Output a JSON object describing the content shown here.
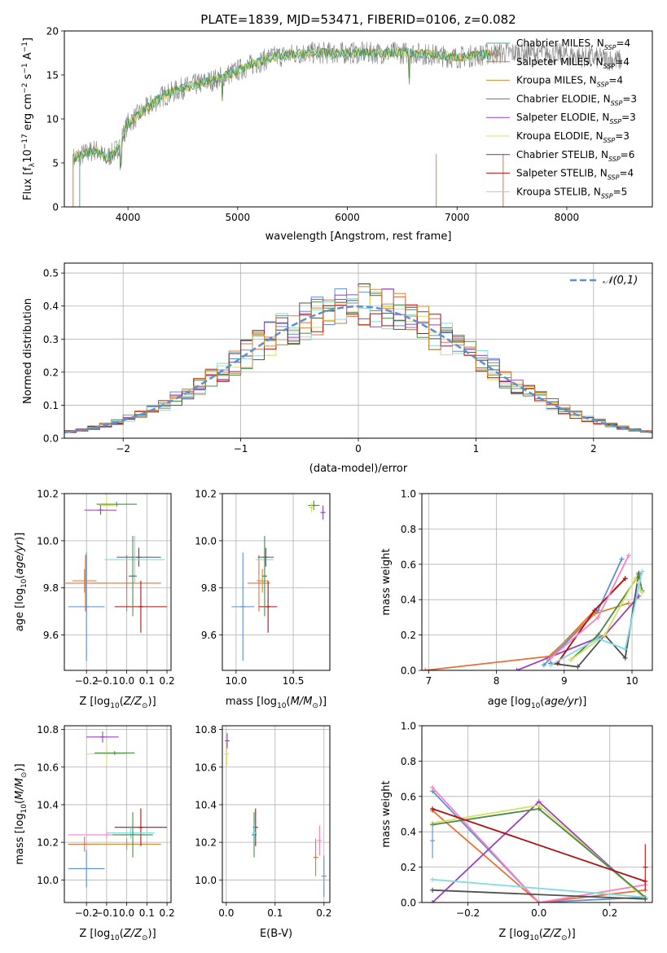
{
  "title": "PLATE=1839, MJD=53471, FIBERID=0106, z=0.082",
  "colors": {
    "chabrier_miles": "#5aa0a0",
    "salpeter_miles": "#e8703a",
    "kroupa_miles": "#d08a30",
    "chabrier_elodie": "#4a8a4a",
    "salpeter_elodie": "#9a40c0",
    "kroupa_elodie": "#d8e060",
    "chabrier_stelib": "#505050",
    "salpeter_stelib": "#b01010",
    "kroupa_stelib": "#80dce0",
    "gaussian": "#5b8fd6",
    "spectrum": "#808080"
  },
  "chart_data": [
    {
      "id": "spectrum",
      "type": "line",
      "xlabel": "wavelength [Angstrom, rest frame]",
      "ylabel": "Flux [f_λ10^-17 erg cm^-2 s^-1 A^-1]",
      "xlim": [
        3420,
        8780
      ],
      "ylim": [
        0,
        20
      ],
      "xticks": [
        4000,
        5000,
        6000,
        7000,
        8000
      ],
      "yticks": [
        0,
        5,
        10,
        15,
        20
      ],
      "legend_position": "right",
      "legend": [
        {
          "label": "Chabrier MILES, N",
          "sub": "SSP",
          "tail": "=4",
          "color": "#5aa0a0"
        },
        {
          "label": "Salpeter MILES, N",
          "sub": "SSP",
          "tail": "=4",
          "color": "#e8703a"
        },
        {
          "label": "Kroupa MILES, N",
          "sub": "SSP",
          "tail": "=4",
          "color": "#d08a30"
        },
        {
          "label": "Chabrier ELODIE, N",
          "sub": "SSP",
          "tail": "=3",
          "color": "#4a8a4a"
        },
        {
          "label": "Salpeter ELODIE, N",
          "sub": "SSP",
          "tail": "=3",
          "color": "#9a40c0"
        },
        {
          "label": "Kroupa ELODIE, N",
          "sub": "SSP",
          "tail": "=3",
          "color": "#d8e060"
        },
        {
          "label": "Chabrier STELIB, N",
          "sub": "SSP",
          "tail": "=6",
          "color": "#505050"
        },
        {
          "label": "Salpeter STELIB, N",
          "sub": "SSP",
          "tail": "=4",
          "color": "#b01010"
        },
        {
          "label": "Kroupa STELIB, N",
          "sub": "SSP",
          "tail": "=5",
          "color": "#80dce0"
        }
      ],
      "continuum": {
        "x": [
          3500,
          3600,
          3700,
          3800,
          3900,
          4000,
          4100,
          4300,
          4500,
          4800,
          5000,
          5300,
          5600,
          6000,
          6300,
          6600,
          7000,
          7400,
          7800,
          8200,
          8600
        ],
        "y": [
          5.5,
          6.0,
          6.5,
          5.5,
          6.5,
          9.5,
          10.5,
          12.5,
          13.5,
          14.5,
          15.5,
          17.0,
          17.5,
          17.5,
          17.5,
          17.5,
          17.0,
          17.5,
          17.5,
          17.0,
          16.5
        ]
      }
    },
    {
      "id": "residuals",
      "type": "histogram",
      "xlabel": "(data-model)/error",
      "ylabel": "Normed distribution",
      "xlim": [
        -2.5,
        2.5
      ],
      "ylim": [
        0,
        0.53
      ],
      "xticks": [
        -2,
        -1,
        0,
        1,
        2
      ],
      "yticks": [
        0.0,
        0.1,
        0.2,
        0.3,
        0.4,
        0.5
      ],
      "legend_position": "upper right",
      "gaussian_label": "𝒩(0,1)",
      "bin_width": 0.1
    },
    {
      "id": "age_vs_Z",
      "type": "scatter",
      "xlabel": "Z [log10(Z/Z☉)]",
      "ylabel": "age [log10(age/yr)]",
      "xlim": [
        -0.31,
        0.22
      ],
      "ylim": [
        9.45,
        10.2
      ],
      "xticks": [
        -0.2,
        -0.1,
        0.0,
        0.1,
        0.2
      ],
      "yticks": [
        9.6,
        9.8,
        10.0,
        10.2
      ],
      "points": [
        {
          "x": -0.2,
          "y": 9.72,
          "xerr": 0.09,
          "yerr": 0.23,
          "color": "#5b8fd6"
        },
        {
          "x": -0.205,
          "y": 9.82,
          "xerr": 0.1,
          "yerr": 0.12,
          "color": "#e8703a"
        },
        {
          "x": 0.0,
          "y": 9.82,
          "xerr": 0.17,
          "yerr": 0.12,
          "color": "#e8703a"
        },
        {
          "x": -0.21,
          "y": 9.83,
          "xerr": 0.06,
          "yerr": 0.05,
          "color": "#d08a30"
        },
        {
          "x": 0.07,
          "y": 9.72,
          "xerr": 0.13,
          "yerr": 0.11,
          "color": "#b01010"
        },
        {
          "x": 0.06,
          "y": 9.93,
          "xerr": 0.11,
          "yerr": 0.04,
          "color": "#505050"
        },
        {
          "x": 0.04,
          "y": 9.92,
          "xerr": 0.15,
          "yerr": 0.1,
          "color": "#80dce0"
        },
        {
          "x": 0.03,
          "y": 9.85,
          "xerr": 0.02,
          "yerr": 0.17,
          "color": "#4a8a4a"
        },
        {
          "x": -0.1,
          "y": 10.15,
          "xerr": 0.04,
          "yerr": 0.04,
          "color": "#d8e060"
        },
        {
          "x": -0.13,
          "y": 10.13,
          "xerr": 0.08,
          "yerr": 0.02,
          "color": "#9a40c0"
        },
        {
          "x": -0.05,
          "y": 10.155,
          "xerr": 0.1,
          "yerr": 0.01,
          "color": "#4a8a4a"
        }
      ]
    },
    {
      "id": "age_vs_mass",
      "type": "scatter",
      "xlabel": "mass [log10(M/M☉)]",
      "ylabel": "",
      "xlim": [
        9.88,
        10.82
      ],
      "ylim": [
        9.45,
        10.2
      ],
      "xticks": [
        10.0,
        10.5
      ],
      "yticks": [
        9.6,
        9.8,
        10.0,
        10.2
      ],
      "points": [
        {
          "x": 10.06,
          "y": 9.72,
          "xerr": 0.1,
          "yerr": 0.23,
          "color": "#5b8fd6"
        },
        {
          "x": 10.2,
          "y": 9.82,
          "xerr": 0.1,
          "yerr": 0.12,
          "color": "#e8703a"
        },
        {
          "x": 10.23,
          "y": 9.83,
          "xerr": 0.05,
          "yerr": 0.05,
          "color": "#d08a30"
        },
        {
          "x": 10.28,
          "y": 9.72,
          "xerr": 0.08,
          "yerr": 0.11,
          "color": "#b01010"
        },
        {
          "x": 10.25,
          "y": 9.92,
          "xerr": 0.08,
          "yerr": 0.1,
          "color": "#80dce0"
        },
        {
          "x": 10.26,
          "y": 9.93,
          "xerr": 0.07,
          "yerr": 0.04,
          "color": "#505050"
        },
        {
          "x": 10.25,
          "y": 9.85,
          "xerr": 0.02,
          "yerr": 0.17,
          "color": "#4a8a4a"
        },
        {
          "x": 10.68,
          "y": 10.15,
          "xerr": 0.05,
          "yerr": 0.02,
          "color": "#4a8a4a"
        },
        {
          "x": 10.66,
          "y": 10.14,
          "xerr": 0.02,
          "yerr": 0.02,
          "color": "#d8e060"
        },
        {
          "x": 10.76,
          "y": 10.12,
          "xerr": 0.02,
          "yerr": 0.03,
          "color": "#9a40c0"
        }
      ]
    },
    {
      "id": "mass_weight_vs_age",
      "type": "line",
      "xlabel": "age [log10(age/yr)]",
      "ylabel": "mass weight",
      "xlim": [
        6.9,
        10.3
      ],
      "ylim": [
        0,
        1.0
      ],
      "xticks": [
        7,
        8,
        9,
        10
      ],
      "yticks": [
        0.0,
        0.2,
        0.4,
        0.6,
        0.8,
        1.0
      ],
      "series": [
        {
          "color": "#5b8fd6",
          "x": [
            8.7,
            9.5,
            9.85
          ],
          "y": [
            0.03,
            0.34,
            0.63
          ]
        },
        {
          "color": "#e8703a",
          "x": [
            6.95,
            8.8,
            9.9
          ],
          "y": [
            0.0,
            0.08,
            0.52
          ]
        },
        {
          "color": "#d08a30",
          "x": [
            8.75,
            9.45,
            9.95
          ],
          "y": [
            0.07,
            0.32,
            0.38
          ]
        },
        {
          "color": "#9a40c0",
          "x": [
            8.3,
            9.6,
            10.1
          ],
          "y": [
            0.0,
            0.2,
            0.42
          ]
        },
        {
          "color": "#b01010",
          "x": [
            8.9,
            9.45,
            9.9
          ],
          "y": [
            0.04,
            0.34,
            0.52
          ]
        },
        {
          "color": "#505050",
          "x": [
            8.8,
            9.2,
            9.6,
            9.9,
            10.1
          ],
          "y": [
            0.04,
            0.02,
            0.2,
            0.07,
            0.55
          ]
        },
        {
          "color": "#4a8a4a",
          "x": [
            9.1,
            9.5,
            10.1,
            10.15
          ],
          "y": [
            0.06,
            0.2,
            0.54,
            0.45
          ]
        },
        {
          "color": "#d8e060",
          "x": [
            9.1,
            9.6,
            10.05,
            10.15
          ],
          "y": [
            0.06,
            0.2,
            0.52,
            0.44
          ]
        },
        {
          "color": "#80dce0",
          "x": [
            8.8,
            9.5,
            9.9,
            10.15
          ],
          "y": [
            0.03,
            0.18,
            0.12,
            0.56
          ]
        },
        {
          "color": "#ff80c0",
          "x": [
            8.8,
            9.5,
            9.95
          ],
          "y": [
            0.07,
            0.3,
            0.65
          ]
        }
      ]
    },
    {
      "id": "mass_vs_Z",
      "type": "scatter",
      "xlabel": "Z [log10(Z/Z☉)]",
      "ylabel": "mass [log10(M/M☉)]",
      "xlim": [
        -0.31,
        0.22
      ],
      "ylim": [
        9.88,
        10.82
      ],
      "xticks": [
        -0.2,
        -0.1,
        0.0,
        0.1,
        0.2
      ],
      "yticks": [
        10.0,
        10.2,
        10.4,
        10.6,
        10.8
      ],
      "points": [
        {
          "x": -0.2,
          "y": 10.06,
          "xerr": 0.09,
          "yerr": 0.1,
          "color": "#5b8fd6"
        },
        {
          "x": -0.21,
          "y": 10.19,
          "xerr": 0.08,
          "yerr": 0.04,
          "color": "#e8703a"
        },
        {
          "x": 0.0,
          "y": 10.19,
          "xerr": 0.17,
          "yerr": 0.03,
          "color": "#d08a30"
        },
        {
          "x": -0.1,
          "y": 10.24,
          "xerr": 0.19,
          "yerr": 0.02,
          "color": "#ff80c0"
        },
        {
          "x": 0.07,
          "y": 10.28,
          "xerr": 0.13,
          "yerr": 0.1,
          "color": "#b01010"
        },
        {
          "x": 0.02,
          "y": 10.25,
          "xerr": 0.12,
          "yerr": 0.03,
          "color": "#80dce0"
        },
        {
          "x": 0.03,
          "y": 10.24,
          "xerr": 0.1,
          "yerr": 0.12,
          "color": "#4a8a4a"
        },
        {
          "x": -0.1,
          "y": 10.67,
          "xerr": 0.1,
          "yerr": 0.06,
          "color": "#d8e060"
        },
        {
          "x": -0.06,
          "y": 10.675,
          "xerr": 0.1,
          "yerr": 0.01,
          "color": "#4a8a4a"
        },
        {
          "x": -0.12,
          "y": 10.76,
          "xerr": 0.08,
          "yerr": 0.03,
          "color": "#9a40c0"
        }
      ]
    },
    {
      "id": "mass_vs_ebv",
      "type": "scatter",
      "xlabel": "E(B-V)",
      "ylabel": "",
      "xlim": [
        -0.008,
        0.212
      ],
      "ylim": [
        9.88,
        10.82
      ],
      "xticks": [
        0.0,
        0.1,
        0.2
      ],
      "yticks": [
        10.0,
        10.2,
        10.4,
        10.6,
        10.8
      ],
      "points": [
        {
          "x": 0.001,
          "y": 10.67,
          "xerr": 0,
          "yerr": 0.06,
          "color": "#d8e060"
        },
        {
          "x": 0.002,
          "y": 10.74,
          "xerr": 0,
          "yerr": 0.04,
          "color": "#9a40c0"
        },
        {
          "x": 0.057,
          "y": 10.24,
          "xerr": 0,
          "yerr": 0.12,
          "color": "#4a8a4a"
        },
        {
          "x": 0.06,
          "y": 10.28,
          "xerr": 0,
          "yerr": 0.1,
          "color": "#b01010"
        },
        {
          "x": 0.058,
          "y": 10.25,
          "xerr": 0,
          "yerr": 0.05,
          "color": "#80dce0"
        },
        {
          "x": 0.183,
          "y": 10.12,
          "xerr": 0,
          "yerr": 0.1,
          "color": "#e8703a"
        },
        {
          "x": 0.191,
          "y": 10.21,
          "xerr": 0,
          "yerr": 0.08,
          "color": "#ff80c0"
        },
        {
          "x": 0.2,
          "y": 10.02,
          "xerr": 0,
          "yerr": 0.11,
          "color": "#5b8fd6"
        }
      ]
    },
    {
      "id": "mass_weight_vs_Z",
      "type": "line",
      "xlabel": "Z [log10(Z/Z☉)]",
      "ylabel": "mass weight",
      "xlim": [
        -0.33,
        0.32
      ],
      "ylim": [
        0,
        1.0
      ],
      "xticks": [
        -0.2,
        0.0,
        0.2
      ],
      "yticks": [
        0.0,
        0.2,
        0.4,
        0.6,
        0.8,
        1.0
      ],
      "series": [
        {
          "color": "#5b8fd6",
          "x": [
            -0.3,
            0.0,
            0.3
          ],
          "y": [
            0.63,
            0.0,
            0.03
          ]
        },
        {
          "color": "#e8703a",
          "x": [
            -0.3,
            0.0,
            0.3
          ],
          "y": [
            0.52,
            0.0,
            0.07
          ]
        },
        {
          "color": "#ff80c0",
          "x": [
            -0.3,
            0.0,
            0.3
          ],
          "y": [
            0.65,
            0.0,
            0.1
          ]
        },
        {
          "color": "#9a40c0",
          "x": [
            -0.3,
            0.0,
            0.3
          ],
          "y": [
            0.0,
            0.57,
            0.02
          ]
        },
        {
          "color": "#d8e060",
          "x": [
            -0.3,
            0.0,
            0.3
          ],
          "y": [
            0.45,
            0.55,
            0.02
          ]
        },
        {
          "color": "#4a8a4a",
          "x": [
            -0.3,
            0.0,
            0.3
          ],
          "y": [
            0.44,
            0.53,
            0.03
          ]
        },
        {
          "color": "#b01010",
          "x": [
            -0.3,
            0.3
          ],
          "y": [
            0.53,
            0.12
          ]
        },
        {
          "color": "#80dce0",
          "x": [
            -0.3,
            0.3
          ],
          "y": [
            0.13,
            0.03
          ]
        },
        {
          "color": "#505050",
          "x": [
            -0.3,
            0.3
          ],
          "y": [
            0.07,
            0.02
          ]
        }
      ],
      "edge_errorbars": [
        {
          "x": 0.3,
          "y": 0.2,
          "yerr": 0.13,
          "color": "#b01010"
        },
        {
          "x": -0.3,
          "y": 0.35,
          "yerr": 0.1,
          "color": "#5b8fd6"
        }
      ]
    }
  ]
}
